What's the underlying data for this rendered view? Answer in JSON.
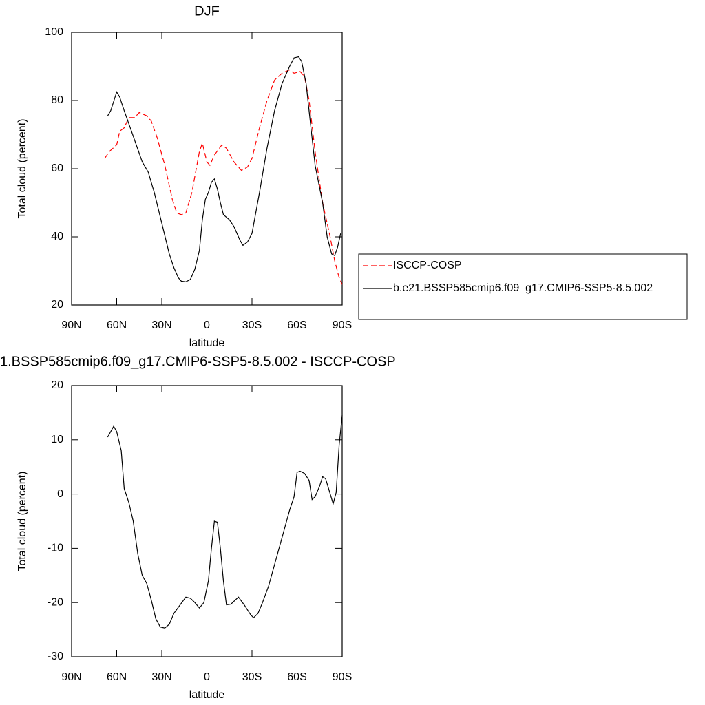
{
  "chart_data": [
    {
      "type": "line",
      "title": "DJF",
      "xlabel": "latitude",
      "ylabel": "Total cloud (percent)",
      "xlim": [
        90,
        -90
      ],
      "xticks": [
        {
          "value": 90,
          "label": "90N"
        },
        {
          "value": 60,
          "label": "60N"
        },
        {
          "value": 30,
          "label": "30N"
        },
        0,
        {
          "value": -30,
          "label": "30S"
        },
        {
          "value": -60,
          "label": "60S"
        },
        {
          "value": -90,
          "label": "90S"
        }
      ],
      "ylim": [
        20,
        100
      ],
      "yticks": [
        20,
        40,
        60,
        80,
        100
      ],
      "legend": "right",
      "series": [
        {
          "name": "ISCCP-COSP",
          "color": "#ff0000",
          "dash": true,
          "x": [
            68,
            65,
            60,
            58,
            55,
            52,
            48,
            45,
            40,
            37,
            33,
            28,
            23,
            20,
            17,
            14,
            10,
            5,
            3,
            0,
            -2,
            -5,
            -10,
            -13,
            -18,
            -23,
            -27,
            -30,
            -35,
            -40,
            -45,
            -50,
            -55,
            -58,
            -62,
            -65,
            -68,
            -72,
            -77,
            -82,
            -85,
            -88,
            -90
          ],
          "values": [
            63,
            65,
            67,
            71,
            72,
            75,
            75,
            76.5,
            75.5,
            74,
            69,
            61,
            51,
            47,
            46.5,
            47,
            53,
            65,
            67.5,
            62,
            61,
            64,
            67,
            66,
            62,
            59.5,
            60.5,
            63,
            72,
            80,
            86,
            88,
            89,
            88,
            88.5,
            87,
            80,
            65,
            50,
            40,
            33,
            28,
            26
          ]
        },
        {
          "name": "b.e21.BSSP585cmip6.f09_g17.CMIP6-SSP5-8.5.002",
          "color": "#000000",
          "dash": false,
          "x": [
            66,
            64,
            60,
            58,
            55,
            51,
            47,
            43,
            39,
            35,
            30,
            25,
            22,
            19,
            17,
            14,
            11,
            8,
            5,
            3,
            1,
            -1,
            -3,
            -5,
            -7,
            -9,
            -11,
            -15,
            -18,
            -22,
            -24,
            -27,
            -30,
            -35,
            -40,
            -45,
            -50,
            -55,
            -58,
            -61,
            -63,
            -66,
            -69,
            -72,
            -77,
            -80,
            -83,
            -85,
            -87,
            -89
          ],
          "values": [
            75.5,
            77,
            82.5,
            81,
            77,
            72,
            67,
            62,
            59,
            53,
            44,
            35,
            31,
            28,
            27,
            26.8,
            27.5,
            30.5,
            36,
            45,
            51,
            53,
            56,
            57,
            54,
            50,
            46.5,
            45,
            43,
            39,
            37.5,
            38.5,
            41,
            53,
            66,
            77,
            85,
            90,
            92.5,
            92.8,
            91.5,
            85,
            73,
            61,
            50,
            40,
            35,
            34.5,
            37,
            41
          ]
        }
      ]
    },
    {
      "type": "line",
      "title": "1.BSSP585cmip6.f09_g17.CMIP6-SSP5-8.5.002 - ISCCP-COSP",
      "xlabel": "latitude",
      "ylabel": "Total cloud (percent)",
      "xlim": [
        90,
        -90
      ],
      "xticks": [
        {
          "value": 90,
          "label": "90N"
        },
        {
          "value": 60,
          "label": "60N"
        },
        {
          "value": 30,
          "label": "30N"
        },
        0,
        {
          "value": -30,
          "label": "30S"
        },
        {
          "value": -60,
          "label": "60S"
        },
        {
          "value": -90,
          "label": "90S"
        }
      ],
      "ylim": [
        -30,
        20
      ],
      "yticks": [
        -30,
        -20,
        -10,
        0,
        10,
        20
      ],
      "series": [
        {
          "color": "#000000",
          "dash": false,
          "x": [
            66,
            62,
            60,
            57,
            55,
            52,
            49,
            46,
            43,
            40,
            37,
            34,
            31,
            28,
            25,
            22,
            18,
            14,
            11,
            8,
            5,
            2,
            -1,
            -3,
            -5,
            -7,
            -9,
            -11,
            -13,
            -16,
            -19,
            -21,
            -25,
            -29,
            -31,
            -34,
            -37,
            -41,
            -45,
            -50,
            -55,
            -58,
            -60,
            -62,
            -65,
            -68,
            -70,
            -72,
            -75,
            -77,
            -79,
            -81,
            -84,
            -86,
            -88,
            -90
          ],
          "values": [
            10.5,
            12.5,
            11.5,
            8,
            1,
            -1.5,
            -5,
            -11,
            -15,
            -16.5,
            -19.5,
            -23,
            -24.5,
            -24.7,
            -24,
            -22,
            -20.5,
            -19,
            -19.2,
            -20,
            -21,
            -20,
            -16,
            -10,
            -5,
            -5.2,
            -10,
            -16,
            -20.4,
            -20.3,
            -19.5,
            -19,
            -20.5,
            -22.2,
            -22.8,
            -22,
            -20,
            -17,
            -13,
            -8,
            -3,
            -0.5,
            4,
            4.2,
            3.8,
            2.5,
            -1,
            -0.5,
            1.5,
            3.2,
            2.8,
            1,
            -1.8,
            0.3,
            9,
            14.5
          ]
        }
      ]
    }
  ]
}
